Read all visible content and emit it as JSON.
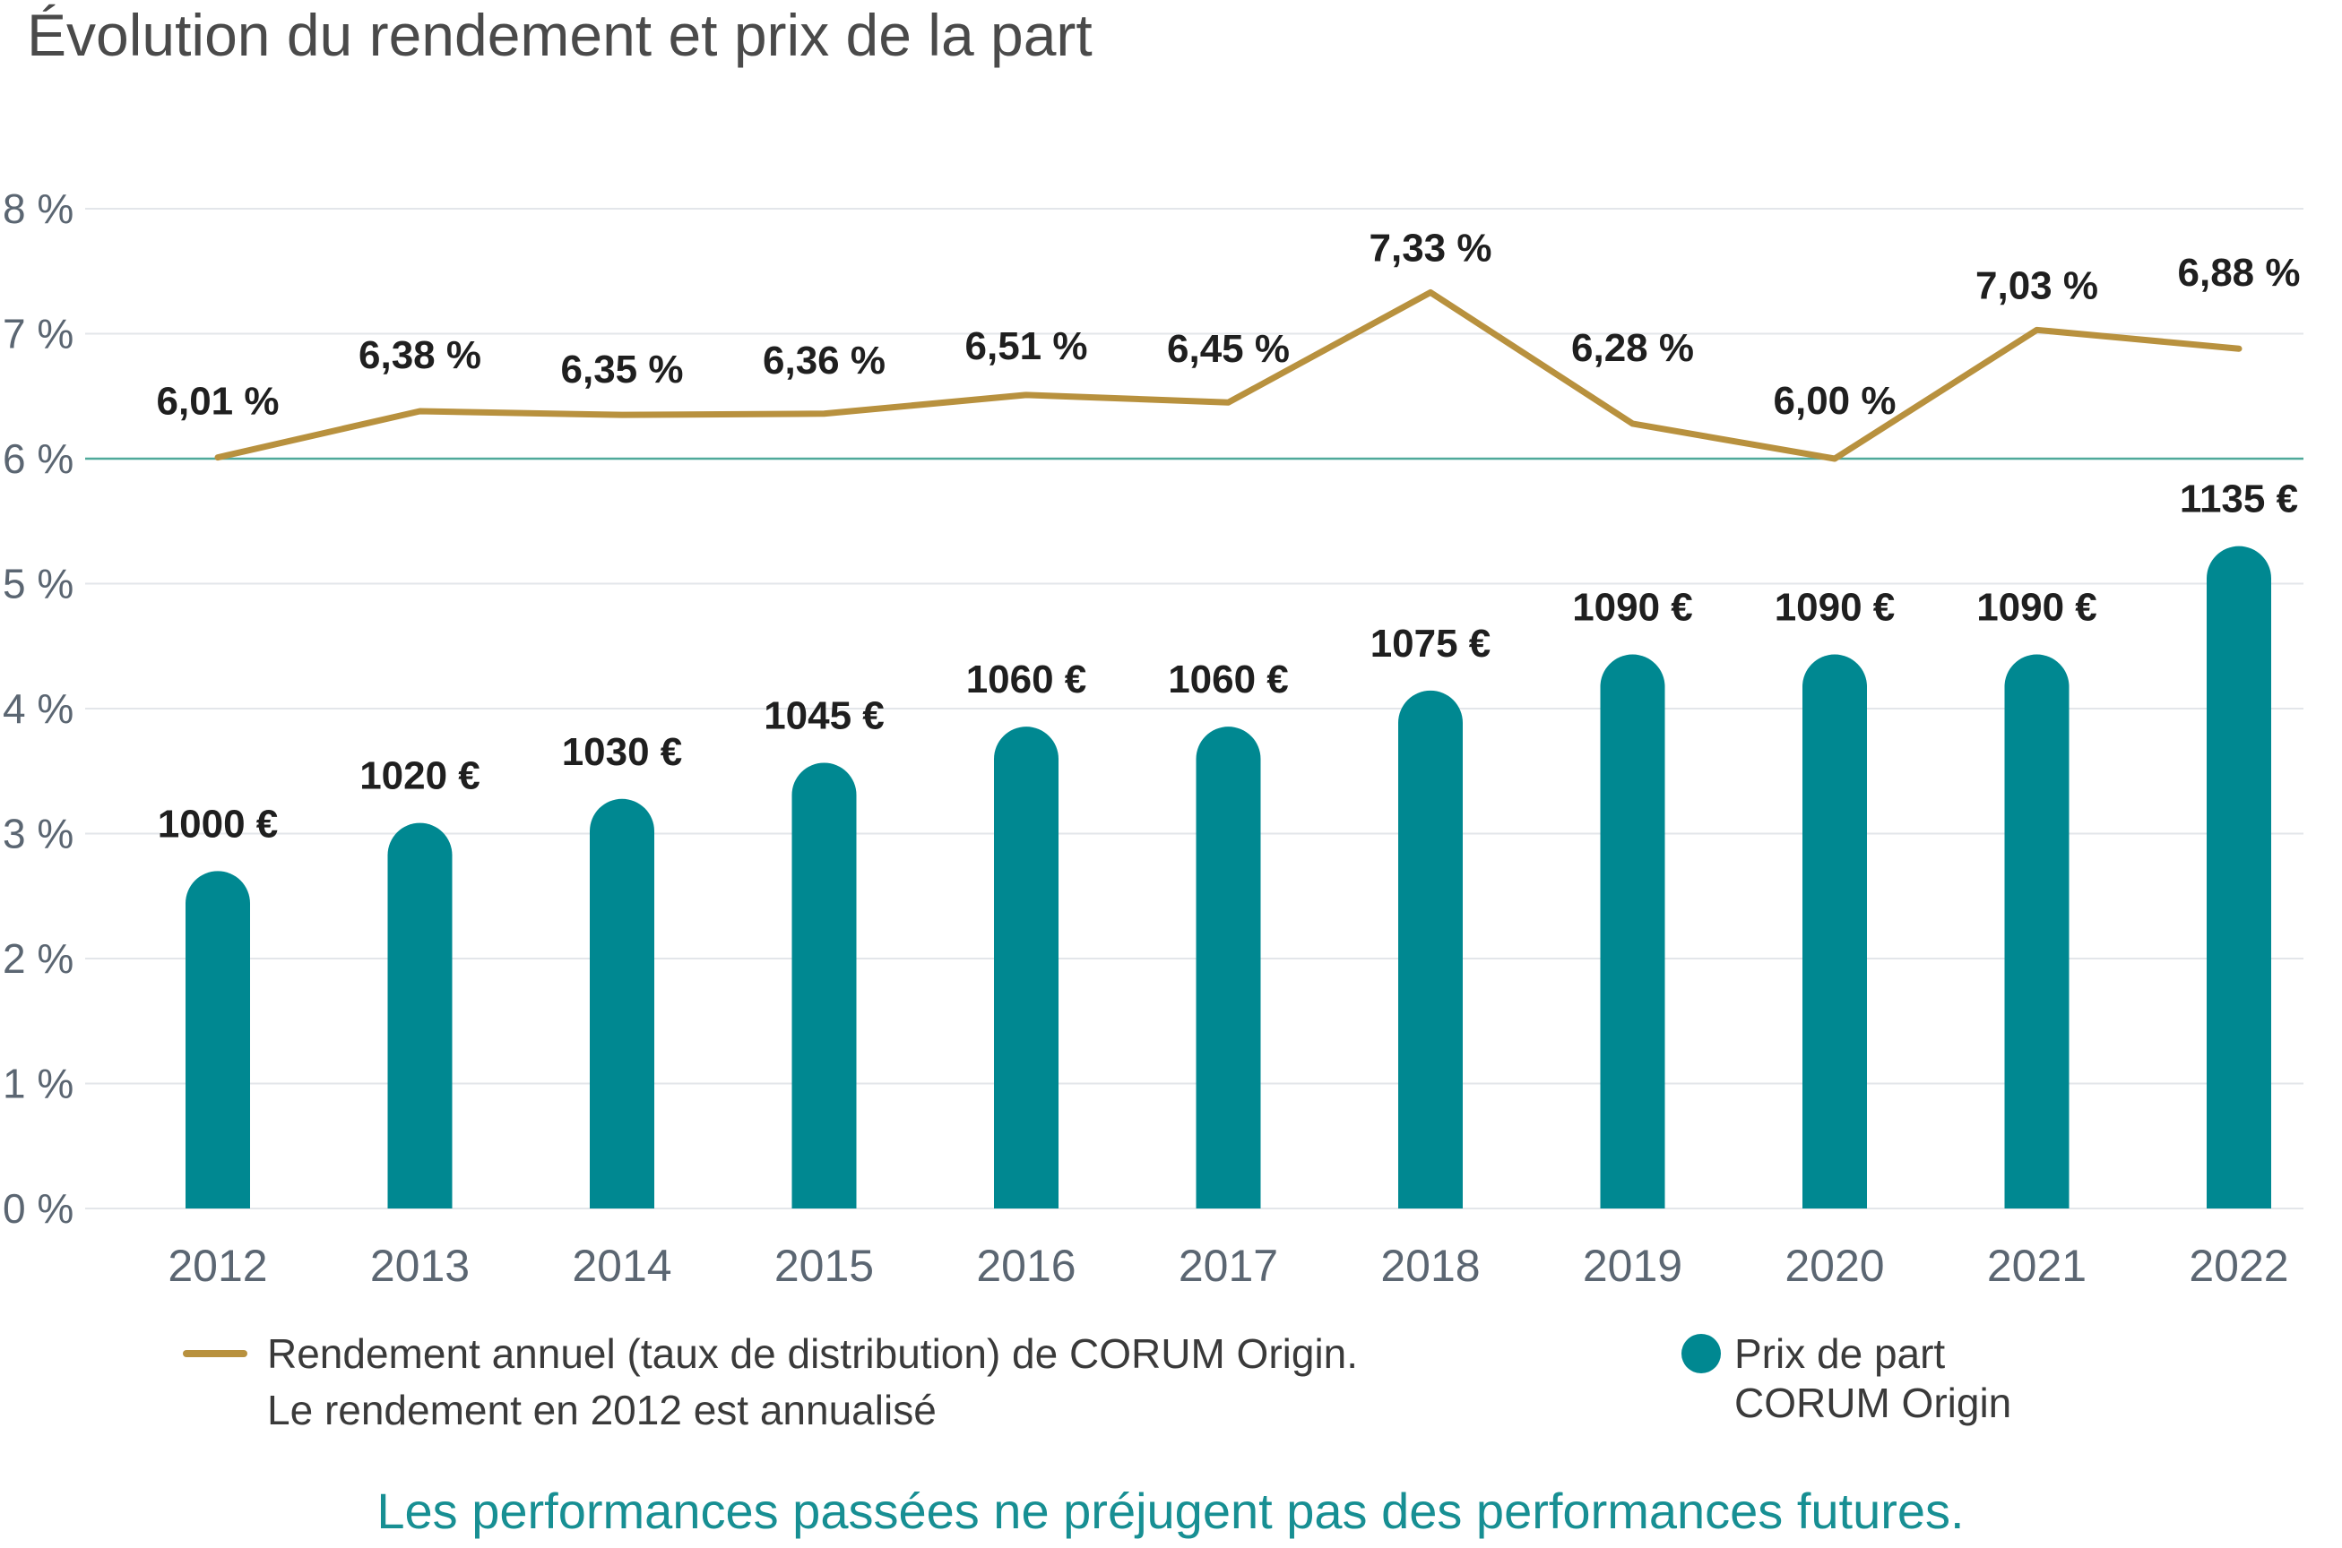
{
  "colors": {
    "bars": "#008891",
    "line": "#b8913e",
    "grid": "#e3e6ea",
    "reference": "#4fa99a",
    "footnote": "#178f93"
  },
  "chart_data": {
    "type": "bar",
    "title": "Évolution du rendement et prix de la part",
    "categories": [
      "2012",
      "2013",
      "2014",
      "2015",
      "2016",
      "2017",
      "2018",
      "2019",
      "2020",
      "2021",
      "2022"
    ],
    "y_ticks": [
      "0 %",
      "1 %",
      "2 %",
      "3 %",
      "4 %",
      "5 %",
      "6 %",
      "7 %",
      "8 %"
    ],
    "ylim": [
      0,
      8
    ],
    "grid": true,
    "price_scale": {
      "min_value": 1000,
      "max_value": 1135,
      "min_y": 2.7,
      "max_y": 5.3
    },
    "series": [
      {
        "name": "Rendement annuel (taux de distribution) de CORUM Origin.",
        "type": "line",
        "values": [
          6.01,
          6.38,
          6.35,
          6.36,
          6.51,
          6.45,
          7.33,
          6.28,
          6.0,
          7.03,
          6.88
        ],
        "labels": [
          "6,01 %",
          "6,38 %",
          "6,35 %",
          "6,36 %",
          "6,51 %",
          "6,45 %",
          "7,33 %",
          "6,28 %",
          "6,00 %",
          "7,03 %",
          "6,88 %"
        ]
      },
      {
        "name": "Prix de part",
        "type": "bar",
        "values": [
          1000,
          1020,
          1030,
          1045,
          1060,
          1060,
          1075,
          1090,
          1090,
          1090,
          1135
        ],
        "labels": [
          "1000 €",
          "1020 €",
          "1030 €",
          "1045 €",
          "1060 €",
          "1060 €",
          "1075 €",
          "1090 €",
          "1090 €",
          "1090 €",
          "1135 €"
        ]
      }
    ],
    "legend": {
      "placement": "bottom",
      "line_label_1": "Rendement annuel (taux de distribution) de CORUM Origin.",
      "line_label_2": "Le rendement en 2012 est annualisé",
      "bar_label_1": "Prix de part",
      "bar_label_2": "CORUM Origin"
    },
    "footnote": "Les performances passées ne préjugent pas des performances futures."
  }
}
